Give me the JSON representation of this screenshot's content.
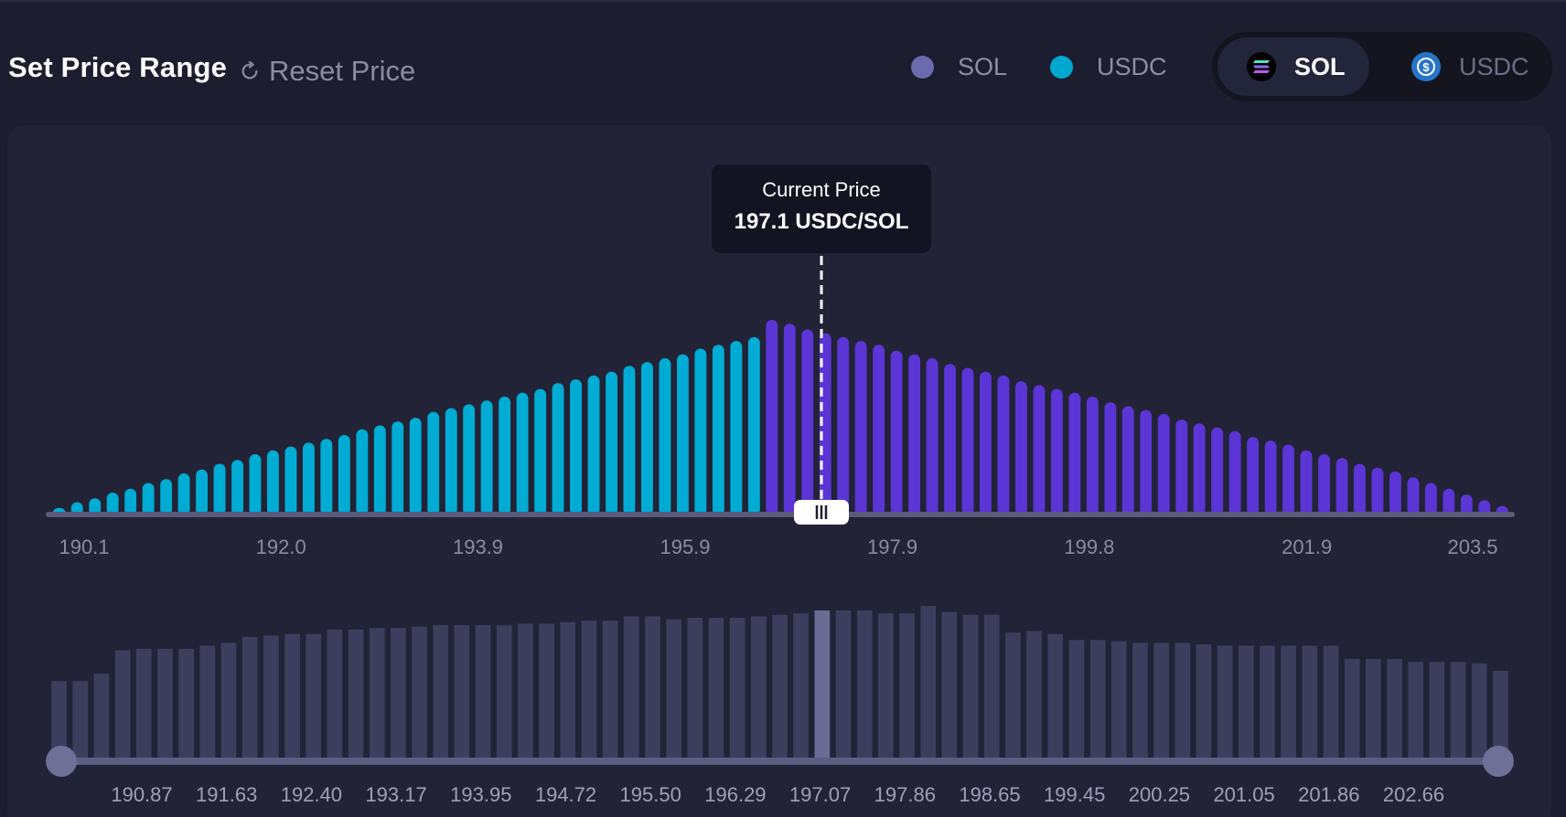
{
  "header": {
    "title": "Set Price Range",
    "reset_label": "Reset Price",
    "legend": [
      {
        "label": "SOL",
        "color": "#6a6aae"
      },
      {
        "label": "USDC",
        "color": "#00a8d0"
      }
    ],
    "toggle": {
      "selected": "SOL",
      "options": [
        {
          "label": "SOL",
          "icon": "solana-icon"
        },
        {
          "label": "USDC",
          "icon": "usdc-icon"
        }
      ]
    }
  },
  "tooltip": {
    "title": "Current Price",
    "value": "197.1 USDC/SOL"
  },
  "colors": {
    "usdc_bar": "#00acd3",
    "sol_bar": "#5b35d5",
    "volume_bar": "#3d3e5e",
    "volume_highlight": "#6b6c94",
    "slider_handle": "#6e7098"
  },
  "chart_data": [
    {
      "type": "bar",
      "description_key": "liquidity",
      "x_ticks": [
        "190.1",
        "192.0",
        "193.9",
        "195.9",
        "197.9",
        "199.8",
        "201.9",
        "203.5"
      ],
      "x_range": [
        190.1,
        203.5
      ],
      "current_price": 197.1,
      "series": [
        {
          "name": "USDC",
          "values": [
            0.02,
            0.05,
            0.07,
            0.1,
            0.12,
            0.15,
            0.17,
            0.2,
            0.22,
            0.25,
            0.27,
            0.3,
            0.32,
            0.34,
            0.36,
            0.38,
            0.4,
            0.43,
            0.45,
            0.47,
            0.49,
            0.52,
            0.54,
            0.56,
            0.58,
            0.6,
            0.62,
            0.64,
            0.67,
            0.69,
            0.71,
            0.73,
            0.76,
            0.78,
            0.8,
            0.82,
            0.85,
            0.87,
            0.89,
            0.91
          ]
        },
        {
          "name": "SOL",
          "values": [
            1.0,
            0.98,
            0.95,
            0.93,
            0.91,
            0.89,
            0.87,
            0.84,
            0.82,
            0.8,
            0.77,
            0.75,
            0.73,
            0.71,
            0.68,
            0.66,
            0.64,
            0.62,
            0.6,
            0.57,
            0.55,
            0.53,
            0.51,
            0.48,
            0.46,
            0.44,
            0.42,
            0.39,
            0.37,
            0.35,
            0.32,
            0.3,
            0.28,
            0.25,
            0.23,
            0.21,
            0.18,
            0.15,
            0.12,
            0.09,
            0.06,
            0.03
          ]
        }
      ]
    },
    {
      "type": "bar",
      "description_key": "volume",
      "x_ticks": [
        "190.87",
        "191.63",
        "192.40",
        "193.17",
        "193.95",
        "194.72",
        "195.50",
        "196.29",
        "197.07",
        "197.86",
        "198.65",
        "199.45",
        "200.25",
        "201.05",
        "201.86",
        "202.66"
      ],
      "highlight_index": 36,
      "values": [
        0.52,
        0.52,
        0.57,
        0.73,
        0.74,
        0.74,
        0.74,
        0.76,
        0.78,
        0.82,
        0.83,
        0.84,
        0.84,
        0.87,
        0.87,
        0.88,
        0.88,
        0.89,
        0.9,
        0.9,
        0.9,
        0.9,
        0.91,
        0.91,
        0.92,
        0.93,
        0.93,
        0.96,
        0.96,
        0.94,
        0.95,
        0.95,
        0.95,
        0.96,
        0.97,
        0.98,
        1.0,
        1.0,
        1.0,
        0.98,
        0.98,
        1.03,
        0.99,
        0.97,
        0.97,
        0.85,
        0.86,
        0.84,
        0.8,
        0.8,
        0.79,
        0.78,
        0.78,
        0.78,
        0.77,
        0.76,
        0.76,
        0.76,
        0.76,
        0.76,
        0.76,
        0.67,
        0.67,
        0.67,
        0.65,
        0.65,
        0.65,
        0.64,
        0.59
      ],
      "range_min": 190.87,
      "range_max": 202.66
    }
  ]
}
